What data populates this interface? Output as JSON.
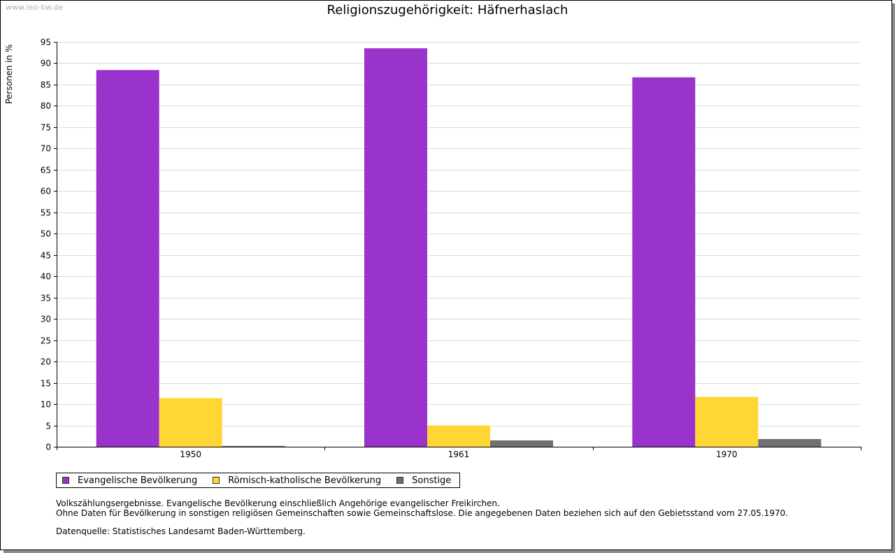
{
  "watermark": "www.leo-bw.de",
  "chart_data": {
    "type": "bar",
    "title": "Religionszugehörigkeit: Häfnerhaslach",
    "xlabel": "",
    "ylabel": "Personen in %",
    "categories": [
      "1950",
      "1961",
      "1970"
    ],
    "series": [
      {
        "name": "Evangelische Bevölkerung",
        "color": "#9933cc",
        "values": [
          88.4,
          93.5,
          86.7
        ]
      },
      {
        "name": "Römisch-katholische Bevölkerung",
        "color": "#ffd633",
        "values": [
          11.4,
          5.0,
          11.7
        ]
      },
      {
        "name": "Sonstige",
        "color": "#707070",
        "values": [
          0.2,
          1.5,
          1.8
        ]
      }
    ],
    "ylim": [
      0,
      95
    ],
    "yticks": [
      0,
      5,
      10,
      15,
      20,
      25,
      30,
      35,
      40,
      45,
      50,
      55,
      60,
      65,
      70,
      75,
      80,
      85,
      90,
      95
    ],
    "grid": true,
    "legend_position": "bottom-left"
  },
  "notes": {
    "line1": "Volkszählungsergebnisse. Evangelische Bevölkerung einschließlich Angehörige evangelischer Freikirchen.",
    "line2": "Ohne Daten für Bevölkerung in sonstigen religiösen Gemeinschaften sowie Gemeinschaftslose. Die angegebenen Daten beziehen sich auf den Gebietsstand vom 27.05.1970.",
    "source": "Datenquelle: Statistisches Landesamt Baden-Württemberg."
  }
}
